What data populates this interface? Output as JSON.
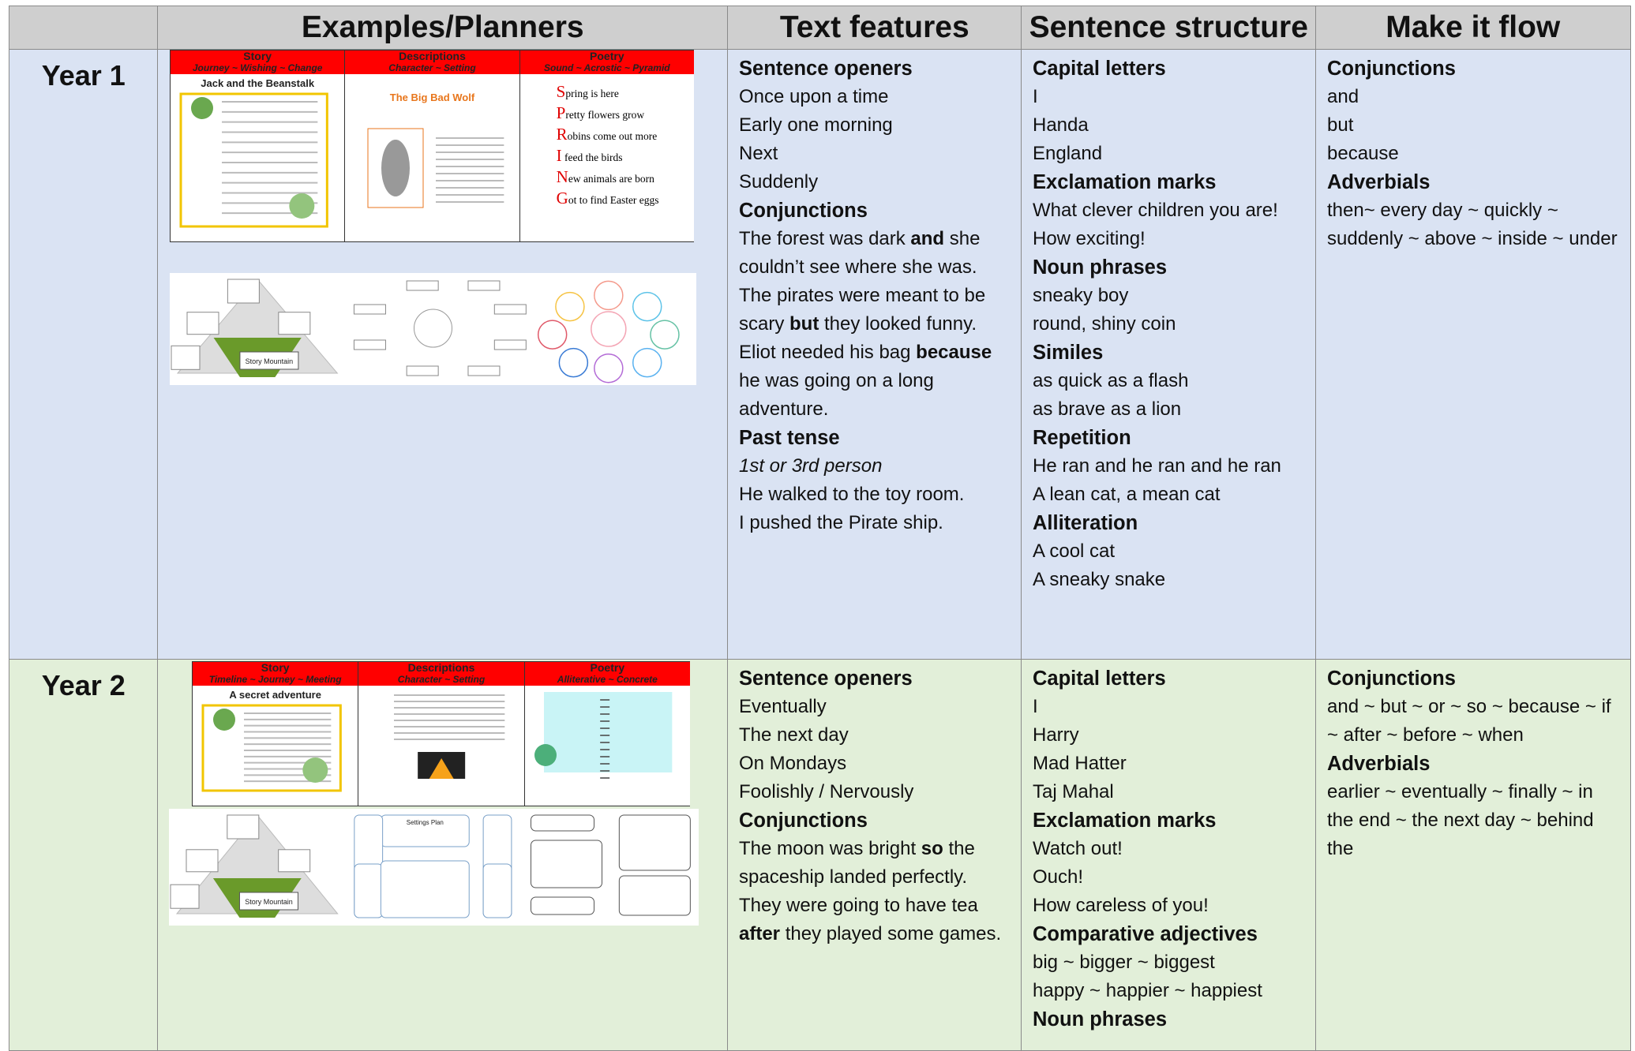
{
  "header": [
    "Examples/Planners",
    "Text features",
    "Sentence structure",
    "Make it flow"
  ],
  "rows": [
    {
      "year": "Year 1",
      "examples": {
        "panels": [
          {
            "title": "Story",
            "subtitle": "Journey ~ Wishing ~ Change",
            "heading": "Jack and the Beanstalk"
          },
          {
            "title": "Descriptions",
            "subtitle": "Character ~ Setting",
            "heading": "The Big Bad Wolf"
          },
          {
            "title": "Poetry",
            "subtitle": "Sound ~ Acrostic ~ Pyramid",
            "lines": [
              "Spring is here",
              "Pretty flowers grow",
              "Robins come out more",
              "I feed the birds",
              "New animals are born",
              "Got to find Easter eggs"
            ]
          }
        ],
        "planner": {
          "mountain": "Story Mountain"
        }
      },
      "columns": [
        [
          {
            "heading": "Sentence openers"
          },
          "Once upon a time",
          "Early one morning",
          "Next",
          "Suddenly",
          {
            "heading": "Conjunctions"
          },
          {
            "runs": [
              {
                "text": "The forest was dark "
              },
              {
                "text": "and",
                "bold": true
              },
              {
                "text": " she couldn’t see where she was."
              }
            ]
          },
          {
            "runs": [
              {
                "text": "The pirates were meant to be scary "
              },
              {
                "text": "but",
                "bold": true
              },
              {
                "text": " they looked funny."
              }
            ]
          },
          {
            "runs": [
              {
                "text": "Eliot needed his bag "
              },
              {
                "text": "because",
                "bold": true
              },
              {
                "text": " he was going on a long adventure."
              }
            ]
          },
          {
            "heading": "Past tense"
          },
          {
            "italic": "1st or 3rd person"
          },
          "He walked to the toy room.",
          "I pushed the Pirate ship."
        ],
        [
          {
            "heading": "Capital letters"
          },
          "I",
          "Handa",
          "England",
          {
            "heading": "Exclamation marks"
          },
          "What clever children you are!",
          "How exciting!",
          {
            "heading": "Noun phrases"
          },
          "sneaky boy",
          "round, shiny coin",
          {
            "heading": "Similes"
          },
          "as quick as a flash",
          "as brave as a lion",
          {
            "heading": "Repetition"
          },
          "He ran and he ran and he ran",
          "A lean cat, a mean cat",
          {
            "heading": "Alliteration"
          },
          "A cool cat",
          "A sneaky snake"
        ],
        [
          {
            "heading": "Conjunctions"
          },
          "and",
          "but",
          "because",
          {
            "heading": "Adverbials"
          },
          "then~ every day ~ quickly ~ suddenly ~ above ~ inside ~ under"
        ]
      ]
    },
    {
      "year": "Year 2",
      "examples": {
        "panels": [
          {
            "title": "Story",
            "subtitle": "Timeline ~ Journey ~ Meeting",
            "heading": "A secret adventure"
          },
          {
            "title": "Descriptions",
            "subtitle": "Character ~ Setting"
          },
          {
            "title": "Poetry",
            "subtitle": "Alliterative ~ Concrete"
          }
        ],
        "planner": {
          "mountain": "Story Mountain",
          "plan": "Settings Plan"
        }
      },
      "columns": [
        [
          {
            "heading": "Sentence openers"
          },
          "Eventually",
          "The next day",
          "On Mondays",
          "Foolishly / Nervously",
          {
            "heading": "Conjunctions"
          },
          {
            "runs": [
              {
                "text": "The moon was bright "
              },
              {
                "text": "so",
                "bold": true
              },
              {
                "text": " the spaceship landed perfectly."
              }
            ]
          },
          {
            "runs": [
              {
                "text": "They were going to have tea "
              },
              {
                "text": "after",
                "bold": true
              },
              {
                "text": " they played some games."
              }
            ]
          }
        ],
        [
          {
            "heading": "Capital letters"
          },
          "I",
          "Harry",
          "Mad Hatter",
          "Taj Mahal",
          {
            "heading": "Exclamation marks"
          },
          "Watch out!",
          "Ouch!",
          "How careless of you!",
          {
            "heading": "Comparative adjectives"
          },
          "big ~ bigger ~ biggest",
          "happy ~ happier ~ happiest",
          {
            "heading": "Noun phrases"
          }
        ],
        [
          {
            "heading": "Conjunctions"
          },
          "and ~ but ~ or ~ so ~ because ~ if ~ after ~ before ~ when",
          {
            "heading": "Adverbials"
          },
          "earlier ~ eventually ~ finally ~ in the end ~ the next day ~ behind the"
        ]
      ]
    }
  ]
}
